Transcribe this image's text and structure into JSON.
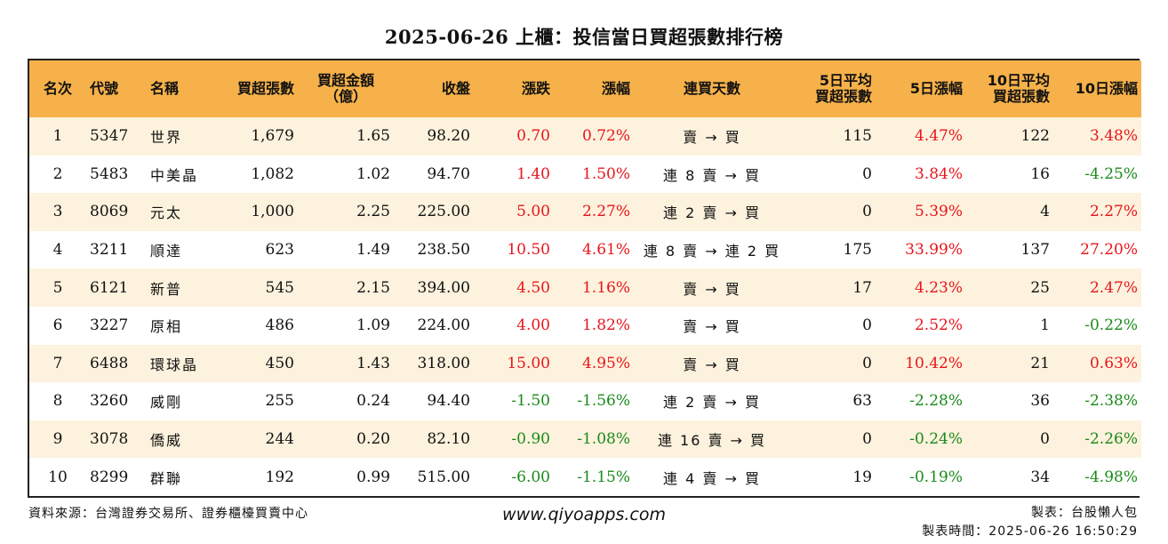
{
  "title": "2025-06-26 上櫃：投信當日買超張數排行榜",
  "headers": {
    "rank": "名次",
    "code": "代號",
    "name": "名稱",
    "net_buy_lots": "買超張數",
    "net_buy_amount_1": "買超金額",
    "net_buy_amount_2": "（億）",
    "close": "收盤",
    "change": "漲跌",
    "change_pct": "漲幅",
    "buy_days": "連買天數",
    "avg5_1": "5日平均",
    "avg5_2": "買超張數",
    "pct5": "5日漲幅",
    "avg10_1": "10日平均",
    "avg10_2": "買超張數",
    "pct10": "10日漲幅"
  },
  "rows": [
    {
      "rank": "1",
      "code": "5347",
      "name": "世界",
      "lots": "1,679",
      "amount": "1.65",
      "close": "98.20",
      "change": "0.70",
      "change_pct": "0.72%",
      "days": "賣 → 買",
      "avg5": "115",
      "pct5": "4.47%",
      "avg10": "122",
      "pct10": "3.48%"
    },
    {
      "rank": "2",
      "code": "5483",
      "name": "中美晶",
      "lots": "1,082",
      "amount": "1.02",
      "close": "94.70",
      "change": "1.40",
      "change_pct": "1.50%",
      "days": "連 8 賣 → 買",
      "avg5": "0",
      "pct5": "3.84%",
      "avg10": "16",
      "pct10": "-4.25%"
    },
    {
      "rank": "3",
      "code": "8069",
      "name": "元太",
      "lots": "1,000",
      "amount": "2.25",
      "close": "225.00",
      "change": "5.00",
      "change_pct": "2.27%",
      "days": "連 2 賣 → 買",
      "avg5": "0",
      "pct5": "5.39%",
      "avg10": "4",
      "pct10": "2.27%"
    },
    {
      "rank": "4",
      "code": "3211",
      "name": "順達",
      "lots": "623",
      "amount": "1.49",
      "close": "238.50",
      "change": "10.50",
      "change_pct": "4.61%",
      "days": "連 8 賣 → 連 2 買",
      "avg5": "175",
      "pct5": "33.99%",
      "avg10": "137",
      "pct10": "27.20%"
    },
    {
      "rank": "5",
      "code": "6121",
      "name": "新普",
      "lots": "545",
      "amount": "2.15",
      "close": "394.00",
      "change": "4.50",
      "change_pct": "1.16%",
      "days": "賣 → 買",
      "avg5": "17",
      "pct5": "4.23%",
      "avg10": "25",
      "pct10": "2.47%"
    },
    {
      "rank": "6",
      "code": "3227",
      "name": "原相",
      "lots": "486",
      "amount": "1.09",
      "close": "224.00",
      "change": "4.00",
      "change_pct": "1.82%",
      "days": "賣 → 買",
      "avg5": "0",
      "pct5": "2.52%",
      "avg10": "1",
      "pct10": "-0.22%"
    },
    {
      "rank": "7",
      "code": "6488",
      "name": "環球晶",
      "lots": "450",
      "amount": "1.43",
      "close": "318.00",
      "change": "15.00",
      "change_pct": "4.95%",
      "days": "賣 → 買",
      "avg5": "0",
      "pct5": "10.42%",
      "avg10": "21",
      "pct10": "0.63%"
    },
    {
      "rank": "8",
      "code": "3260",
      "name": "威剛",
      "lots": "255",
      "amount": "0.24",
      "close": "94.40",
      "change": "-1.50",
      "change_pct": "-1.56%",
      "days": "連 2 賣 → 買",
      "avg5": "63",
      "pct5": "-2.28%",
      "avg10": "36",
      "pct10": "-2.38%"
    },
    {
      "rank": "9",
      "code": "3078",
      "name": "僑威",
      "lots": "244",
      "amount": "0.20",
      "close": "82.10",
      "change": "-0.90",
      "change_pct": "-1.08%",
      "days": "連 16 賣 → 買",
      "avg5": "0",
      "pct5": "-0.24%",
      "avg10": "0",
      "pct10": "-2.26%"
    },
    {
      "rank": "10",
      "code": "8299",
      "name": "群聯",
      "lots": "192",
      "amount": "0.99",
      "close": "515.00",
      "change": "-6.00",
      "change_pct": "-1.15%",
      "days": "連 4 賣 → 買",
      "avg5": "19",
      "pct5": "-0.19%",
      "avg10": "34",
      "pct10": "-4.98%"
    }
  ],
  "colors": {
    "header_bg": "#f6b14a",
    "odd_row_bg": "#fdf2dd",
    "positive": "#e8141c",
    "negative": "#1a8a1a"
  },
  "footer": {
    "source": "資料來源：台灣證券交易所、證券櫃檯買賣中心",
    "website": "www.qiyoapps.com",
    "maker": "製表：台股懶人包",
    "made_time": "製表時間：2025-06-26 16:50:29"
  }
}
